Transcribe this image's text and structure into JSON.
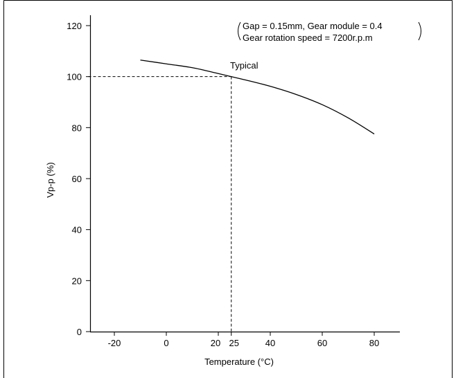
{
  "chart_data": {
    "type": "line",
    "xlabel": "Temperature (°C)",
    "ylabel": "Vp-p (%)",
    "xlim": [
      -30,
      90
    ],
    "ylim": [
      0,
      120
    ],
    "x_ticks": [
      -20,
      0,
      20,
      25,
      40,
      60,
      80
    ],
    "y_ticks": [
      0,
      20,
      40,
      60,
      80,
      100,
      120
    ],
    "grid": false,
    "series": [
      {
        "x": [
          -10,
          0,
          10,
          20,
          25,
          30,
          40,
          50,
          60,
          70,
          80
        ],
        "values": [
          106.5,
          105,
          103.5,
          101.2,
          100,
          98.8,
          96.2,
          93,
          89,
          83.8,
          77.5
        ]
      }
    ],
    "reference": {
      "x": 25,
      "y": 100,
      "label": "Typical"
    },
    "conditions": [
      "Gap = 0.15mm, Gear module = 0.4",
      "Gear rotation speed = 7200r.p.m"
    ]
  }
}
